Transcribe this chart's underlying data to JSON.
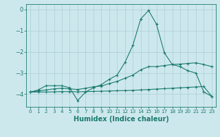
{
  "x": [
    0,
    1,
    2,
    3,
    4,
    5,
    6,
    7,
    8,
    9,
    10,
    11,
    12,
    13,
    14,
    15,
    16,
    17,
    18,
    19,
    20,
    21,
    22,
    23
  ],
  "line1": [
    -3.9,
    -3.8,
    -3.6,
    -3.6,
    -3.6,
    -3.7,
    -4.3,
    -3.9,
    -3.7,
    -3.55,
    -3.3,
    -3.1,
    -2.5,
    -1.7,
    -0.45,
    -0.05,
    -0.7,
    -2.05,
    -2.6,
    -2.7,
    -2.9,
    -3.0,
    -3.9,
    -4.1
  ],
  "line2": [
    -3.9,
    -3.85,
    -3.8,
    -3.75,
    -3.72,
    -3.75,
    -3.78,
    -3.72,
    -3.65,
    -3.62,
    -3.5,
    -3.4,
    -3.25,
    -3.1,
    -2.85,
    -2.7,
    -2.7,
    -2.65,
    -2.6,
    -2.58,
    -2.55,
    -2.52,
    -2.6,
    -2.7
  ],
  "line3": [
    -3.9,
    -3.9,
    -3.9,
    -3.89,
    -3.88,
    -3.88,
    -3.89,
    -3.88,
    -3.87,
    -3.86,
    -3.85,
    -3.84,
    -3.83,
    -3.82,
    -3.8,
    -3.78,
    -3.76,
    -3.74,
    -3.72,
    -3.7,
    -3.68,
    -3.66,
    -3.64,
    -4.1
  ],
  "bg_color": "#cde8ed",
  "grid_color": "#aacdd4",
  "line_color": "#1a7a6e",
  "xlabel": "Humidex (Indice chaleur)",
  "xlabel_fontsize": 7,
  "ylim": [
    -4.6,
    0.25
  ],
  "xlim": [
    -0.5,
    23.5
  ],
  "yticks": [
    0,
    -1,
    -2,
    -3,
    -4
  ],
  "xticks": [
    0,
    1,
    2,
    3,
    4,
    5,
    6,
    7,
    8,
    9,
    10,
    11,
    12,
    13,
    14,
    15,
    16,
    17,
    18,
    19,
    20,
    21,
    22,
    23
  ]
}
